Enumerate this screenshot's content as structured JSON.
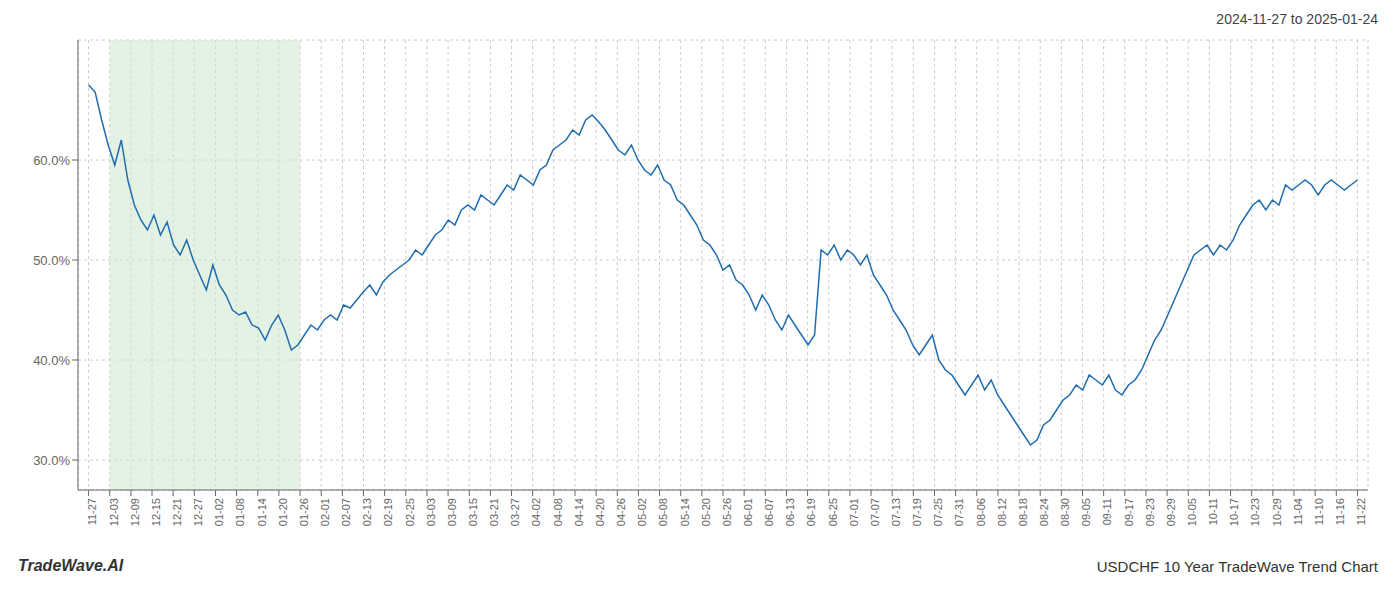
{
  "chart_data": {
    "type": "line",
    "title": "2024-11-27 to 2025-01-24",
    "annotations": [
      "TradeWave.AI",
      "USDCHF 10 Year TradeWave Trend Chart"
    ],
    "color": "#1f6cb0",
    "grid": true,
    "xlim": [
      -0.5,
      60.5
    ],
    "ylim": [
      27.0,
      72.0
    ],
    "yticks": [
      {
        "value": 30.0,
        "label": "30.0%"
      },
      {
        "value": 40.0,
        "label": "40.0%"
      },
      {
        "value": 50.0,
        "label": "50.0%"
      },
      {
        "value": 60.0,
        "label": "60.0%"
      }
    ],
    "xticks": [
      {
        "value": 0,
        "label": "11-27"
      },
      {
        "value": 1,
        "label": "12-03"
      },
      {
        "value": 2,
        "label": "12-09"
      },
      {
        "value": 3,
        "label": "12-15"
      },
      {
        "value": 4,
        "label": "12-21"
      },
      {
        "value": 5,
        "label": "12-27"
      },
      {
        "value": 6,
        "label": "01-02"
      },
      {
        "value": 7,
        "label": "01-08"
      },
      {
        "value": 8,
        "label": "01-14"
      },
      {
        "value": 9,
        "label": "01-20"
      },
      {
        "value": 10,
        "label": "01-26"
      },
      {
        "value": 11,
        "label": "02-01"
      },
      {
        "value": 12,
        "label": "02-07"
      },
      {
        "value": 13,
        "label": "02-13"
      },
      {
        "value": 14,
        "label": "02-19"
      },
      {
        "value": 15,
        "label": "02-25"
      },
      {
        "value": 16,
        "label": "03-03"
      },
      {
        "value": 17,
        "label": "03-09"
      },
      {
        "value": 18,
        "label": "03-15"
      },
      {
        "value": 19,
        "label": "03-21"
      },
      {
        "value": 20,
        "label": "03-27"
      },
      {
        "value": 21,
        "label": "04-02"
      },
      {
        "value": 22,
        "label": "04-08"
      },
      {
        "value": 23,
        "label": "04-14"
      },
      {
        "value": 24,
        "label": "04-20"
      },
      {
        "value": 25,
        "label": "04-26"
      },
      {
        "value": 26,
        "label": "05-02"
      },
      {
        "value": 27,
        "label": "05-08"
      },
      {
        "value": 28,
        "label": "05-14"
      },
      {
        "value": 29,
        "label": "05-20"
      },
      {
        "value": 30,
        "label": "05-26"
      },
      {
        "value": 31,
        "label": "06-01"
      },
      {
        "value": 32,
        "label": "06-07"
      },
      {
        "value": 33,
        "label": "06-13"
      },
      {
        "value": 34,
        "label": "06-19"
      },
      {
        "value": 35,
        "label": "06-25"
      },
      {
        "value": 36,
        "label": "07-01"
      },
      {
        "value": 37,
        "label": "07-07"
      },
      {
        "value": 38,
        "label": "07-13"
      },
      {
        "value": 39,
        "label": "07-19"
      },
      {
        "value": 40,
        "label": "07-25"
      },
      {
        "value": 41,
        "label": "07-31"
      },
      {
        "value": 42,
        "label": "08-06"
      },
      {
        "value": 43,
        "label": "08-12"
      },
      {
        "value": 44,
        "label": "08-18"
      },
      {
        "value": 45,
        "label": "08-24"
      },
      {
        "value": 46,
        "label": "08-30"
      },
      {
        "value": 47,
        "label": "09-05"
      },
      {
        "value": 48,
        "label": "09-11"
      },
      {
        "value": 49,
        "label": "09-17"
      },
      {
        "value": 50,
        "label": "09-23"
      },
      {
        "value": 51,
        "label": "09-29"
      },
      {
        "value": 52,
        "label": "10-05"
      },
      {
        "value": 53,
        "label": "10-11"
      },
      {
        "value": 54,
        "label": "10-17"
      },
      {
        "value": 55,
        "label": "10-23"
      },
      {
        "value": 56,
        "label": "10-29"
      },
      {
        "value": 57,
        "label": "11-04"
      },
      {
        "value": 58,
        "label": "11-10"
      },
      {
        "value": 59,
        "label": "11-16"
      },
      {
        "value": 60,
        "label": "11-22"
      }
    ],
    "shaded_region": {
      "x_from": "12-03",
      "x_to": "01-26",
      "color": "#cce8cc"
    },
    "x": [
      0,
      0.3093,
      0.6186,
      0.9278,
      1.2371,
      1.5464,
      1.8557,
      2.1649,
      2.4742,
      2.7835,
      3.0928,
      3.4021,
      3.7113,
      4.0206,
      4.3299,
      4.6392,
      4.9485,
      5.2577,
      5.567,
      5.8763,
      6.1856,
      6.4948,
      6.8041,
      7.1134,
      7.4227,
      7.732,
      8.0412,
      8.3505,
      8.6598,
      8.9691,
      9.2784,
      9.5876,
      9.8969,
      10.2062,
      10.5155,
      10.8247,
      11.134,
      11.4433,
      11.7526,
      12.0619,
      12.3711,
      12.6804,
      12.9897,
      13.299,
      13.6082,
      13.9175,
      14.2268,
      14.5361,
      14.8454,
      15.1546,
      15.4639,
      15.7732,
      16.0825,
      16.3918,
      16.701,
      17.0103,
      17.3196,
      17.6289,
      17.9381,
      18.2474,
      18.5567,
      18.866,
      19.1753,
      19.4845,
      19.7938,
      20.1031,
      20.4124,
      20.7216,
      21.0309,
      21.3402,
      21.6495,
      21.9588,
      22.268,
      22.5773,
      22.8866,
      23.1959,
      23.5052,
      23.8144,
      24.1237,
      24.433,
      24.7423,
      25.0515,
      25.3608,
      25.6701,
      25.9794,
      26.2887,
      26.5979,
      26.9072,
      27.2165,
      27.5258,
      27.8351,
      28.1443,
      28.4536,
      28.7629,
      29.0722,
      29.3814,
      29.6907,
      30,
      30.3093,
      30.6186,
      30.9278,
      31.2371,
      31.5464,
      31.8557,
      32.1649,
      32.4742,
      32.7835,
      33.0928,
      33.4021,
      33.7113,
      34.0206,
      34.3299,
      34.6392,
      34.9485,
      35.2577,
      35.567,
      35.8763,
      36.1856,
      36.4948,
      36.8041,
      37.1134,
      37.4227,
      37.732,
      38.0412,
      38.3505,
      38.6598,
      38.9691,
      39.2784,
      39.5876,
      39.8969,
      40.2062,
      40.5155,
      40.8247,
      41.134,
      41.4433,
      41.7526,
      42.0619,
      42.3711,
      42.6804,
      42.9897,
      43.299,
      43.6082,
      43.9175,
      44.2268,
      44.5361,
      44.8454,
      45.1546,
      45.4639,
      45.7732,
      46.0825,
      46.3918,
      46.701,
      47.0103,
      47.3196,
      47.6289,
      47.9381,
      48.2474,
      48.5567,
      48.866,
      49.1753,
      49.4845,
      49.7938,
      50.1031,
      50.4124,
      50.7216,
      51.0309,
      51.3402,
      51.6495,
      51.9588,
      52.268,
      52.5773,
      52.8866,
      53.1959,
      53.5052,
      53.8144,
      54.1237,
      54.433,
      54.7423,
      55.0515,
      55.3608,
      55.6701,
      55.9794,
      56.2887,
      56.5979,
      56.9072,
      57.2165,
      57.5258,
      57.8351,
      58.1443,
      58.4536,
      58.7629,
      59.0722,
      59.3814,
      59.6907,
      60
    ],
    "values": [
      67.5,
      66.8,
      64.0,
      61.5,
      59.5,
      62.0,
      58.0,
      55.5,
      54.0,
      53.0,
      54.5,
      52.5,
      53.8,
      51.5,
      50.5,
      52.0,
      50.0,
      48.5,
      47.0,
      49.5,
      47.5,
      46.5,
      45.0,
      44.5,
      44.8,
      43.5,
      43.2,
      42.0,
      43.5,
      44.5,
      43.0,
      41.0,
      41.5,
      42.5,
      43.5,
      43.0,
      44.0,
      44.5,
      44.0,
      45.5,
      45.2,
      46.0,
      46.8,
      47.5,
      46.5,
      47.8,
      48.5,
      49.0,
      49.5,
      50.0,
      51.0,
      50.5,
      51.5,
      52.5,
      53.0,
      54.0,
      53.5,
      55.0,
      55.5,
      55.0,
      56.5,
      56.0,
      55.5,
      56.5,
      57.5,
      57.0,
      58.5,
      58.0,
      57.5,
      59.0,
      59.5,
      61.0,
      61.5,
      62.0,
      63.0,
      62.5,
      64.0,
      64.5,
      63.8,
      63.0,
      62.0,
      61.0,
      60.5,
      61.5,
      60.0,
      59.0,
      58.5,
      59.5,
      58.0,
      57.5,
      56.0,
      55.5,
      54.5,
      53.5,
      52.0,
      51.5,
      50.5,
      49.0,
      49.5,
      48.0,
      47.5,
      46.5,
      45.0,
      46.5,
      45.5,
      44.0,
      43.0,
      44.5,
      43.5,
      42.5,
      41.5,
      42.5,
      51.0,
      50.5,
      51.5,
      50.0,
      51.0,
      50.5,
      49.5,
      50.5,
      48.5,
      47.5,
      46.5,
      45.0,
      44.0,
      43.0,
      41.5,
      40.5,
      41.5,
      42.5,
      40.0,
      39.0,
      38.5,
      37.5,
      36.5,
      37.5,
      38.5,
      37.0,
      38.0,
      36.5,
      35.5,
      34.5,
      33.5,
      32.5,
      31.5,
      32.0,
      33.5,
      34.0,
      35.0,
      36.0,
      36.5,
      37.5,
      37.0,
      38.5,
      38.0,
      37.5,
      38.5,
      37.0,
      36.5,
      37.5,
      38.0,
      39.0,
      40.5,
      42.0,
      43.0,
      44.5,
      46.0,
      47.5,
      49.0,
      50.5,
      51.0,
      51.5,
      50.5,
      51.5,
      51.0,
      52.0,
      53.5,
      54.5,
      55.5,
      56.0,
      55.0,
      56.0,
      55.5,
      57.5,
      57.0,
      57.5,
      58.0,
      57.5,
      56.5,
      57.5,
      58.0,
      57.5,
      57.0,
      57.5,
      58.0
    ]
  }
}
